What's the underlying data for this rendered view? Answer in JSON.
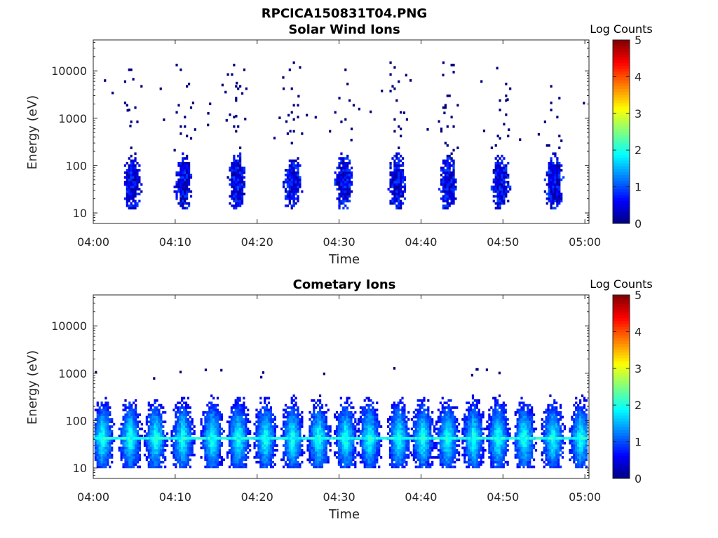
{
  "figure_title": "RPCICA150831T04.PNG",
  "chart_data": [
    {
      "type": "heatmap",
      "title": "Solar Wind Ions",
      "xlabel": "Time",
      "ylabel": "Energy (eV)",
      "x_tick_labels": [
        "04:00",
        "04:10",
        "04:20",
        "04:30",
        "04:40",
        "04:50",
        "05:00"
      ],
      "x_tick_minutes": [
        0,
        10,
        20,
        30,
        40,
        50,
        60
      ],
      "xlim_minutes": [
        0,
        60.5
      ],
      "y_scale": "log",
      "y_tick_labels": [
        "10",
        "100",
        "1000",
        "10000"
      ],
      "y_tick_values": [
        10,
        100,
        1000,
        10000
      ],
      "ylim": [
        6,
        45000
      ],
      "colorbar": {
        "label": "Log Counts",
        "ticks": [
          "0",
          "1",
          "2",
          "3",
          "4",
          "5"
        ],
        "range": [
          0,
          5
        ],
        "colormap": "jet"
      },
      "bursts_center_minutes": [
        4.6,
        10.9,
        17.4,
        24.2,
        30.5,
        37.0,
        43.2,
        49.6,
        56.1
      ],
      "core_energy_range_eV": [
        12,
        200
      ],
      "core_log_counts": [
        0.1,
        1.0
      ],
      "sparse_energy_range_eV": [
        200,
        15000
      ],
      "sparse_log_counts": 0
    },
    {
      "type": "heatmap",
      "title": "Cometary Ions",
      "xlabel": "Time",
      "ylabel": "Energy (eV)",
      "x_tick_labels": [
        "04:00",
        "04:10",
        "04:20",
        "04:30",
        "04:40",
        "04:50",
        "05:00"
      ],
      "x_tick_minutes": [
        0,
        10,
        20,
        30,
        40,
        50,
        60
      ],
      "xlim_minutes": [
        0,
        60.5
      ],
      "y_scale": "log",
      "y_tick_labels": [
        "10",
        "100",
        "1000",
        "10000"
      ],
      "y_tick_values": [
        10,
        100,
        1000,
        10000
      ],
      "ylim": [
        6,
        45000
      ],
      "colorbar": {
        "label": "Log Counts",
        "ticks": [
          "0",
          "1",
          "2",
          "3",
          "4",
          "5"
        ],
        "range": [
          0,
          5
        ],
        "colormap": "jet"
      },
      "bursts_center_minutes": [
        1.0,
        4.4,
        7.5,
        10.8,
        14.4,
        17.6,
        20.9,
        24.2,
        27.4,
        30.7,
        33.6,
        37.2,
        40.1,
        43.1,
        46.3,
        49.3,
        52.5,
        56.0,
        59.4
      ],
      "band_energy_eV": 40,
      "band_log_counts": 2.2,
      "core_energy_range_eV": [
        10,
        500
      ],
      "core_log_counts": [
        0.2,
        2.0
      ]
    }
  ]
}
